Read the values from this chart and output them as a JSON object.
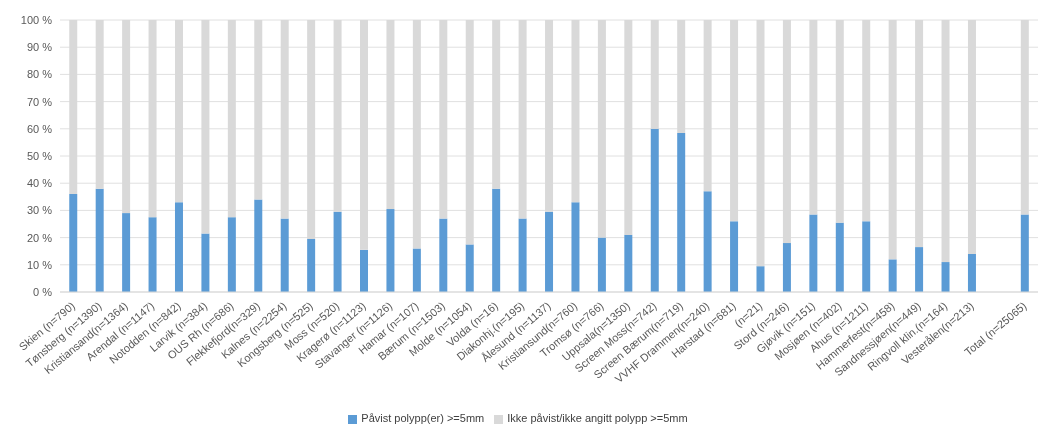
{
  "chart_data": {
    "type": "bar",
    "stacked": true,
    "categories": [
      "Skien (n=790)",
      "Tønsberg (n=1390)",
      "Kristiansand(n=1364)",
      "Arendal (n=1147)",
      "Notodden (n=842)",
      "Larvik (n=384)",
      "OUS Rh (n=686)",
      "Flekkefjord(n=329)",
      "Kalnes (n=2254)",
      "Kongsberg (n=525)",
      "Moss (n=520)",
      "Kragerø (n=1123)",
      "Stavanger (n=1126)",
      "Hamar (n=107)",
      "Bærum (n=1503)",
      "Molde (n=1054)",
      "Volda (n=16)",
      "Diakonhj.(n=195)",
      "Ålesund (n=1137)",
      "Kristiansund(n=760)",
      "Tromsø (n=766)",
      "Uppsala(n=1350)",
      "Screen Moss(n=742)",
      "Screen Bærum(n=719)",
      "VVHF Drammen(n=240)",
      "Harstad (n=681)",
      "(n=21)",
      "Stord (n=246)",
      "Gjøvik (n=151)",
      "Mosjøen (n=402)",
      "Ahus (n=1211)",
      "Hammerfest(n=458)",
      "Sandnessjøen(n=449)",
      "Ringvoll klin.(n=164)",
      "Vesterålen(n=213)",
      null,
      "Total (n=25065)"
    ],
    "series": [
      {
        "name": "Påvist polypp(er) >=5mm",
        "color": "#5b9bd5",
        "values": [
          36,
          38,
          29,
          27.5,
          33,
          21.5,
          27.5,
          34,
          27,
          19.5,
          29.5,
          15.5,
          30.5,
          16,
          27,
          17.5,
          38,
          27,
          29.5,
          33,
          20,
          21,
          60,
          58.5,
          37,
          26,
          9.5,
          18,
          28.5,
          25.5,
          26,
          12,
          16.5,
          11,
          14,
          null,
          28.5
        ]
      },
      {
        "name": "Ikke påvist/ikke angitt polypp >=5mm",
        "color": "#d9d9d9",
        "values": [
          64,
          62,
          71,
          72.5,
          67,
          78.5,
          72.5,
          66,
          73,
          80.5,
          70.5,
          84.5,
          69.5,
          84,
          73,
          82.5,
          62,
          73,
          70.5,
          67,
          80,
          79,
          40,
          41.5,
          63,
          74,
          90.5,
          82,
          71.5,
          74.5,
          74,
          88,
          83.5,
          89,
          86,
          null,
          71.5
        ]
      }
    ],
    "ylim": [
      0,
      100
    ],
    "yticks": [
      {
        "value": 0,
        "label": "0 %"
      },
      {
        "value": 10,
        "label": "10 %"
      },
      {
        "value": 20,
        "label": "20 %"
      },
      {
        "value": 30,
        "label": "30 %"
      },
      {
        "value": 40,
        "label": "40 %"
      },
      {
        "value": 50,
        "label": "50 %"
      },
      {
        "value": 60,
        "label": "60 %"
      },
      {
        "value": 70,
        "label": "70 %"
      },
      {
        "value": 80,
        "label": "80 %"
      },
      {
        "value": 90,
        "label": "90 %"
      },
      {
        "value": 100,
        "label": "100 %"
      }
    ],
    "grid": "y",
    "legend": "bottom"
  }
}
